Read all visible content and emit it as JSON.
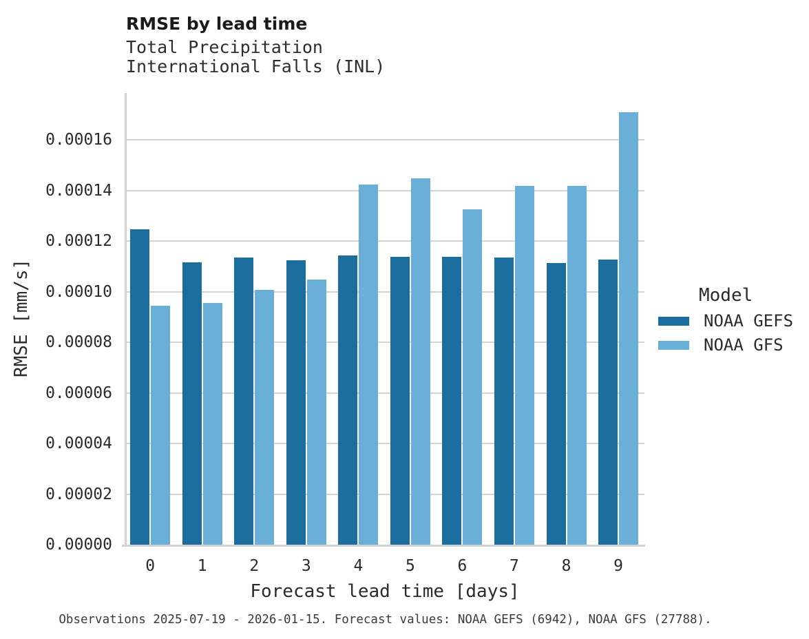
{
  "header": {
    "title": "RMSE by lead time",
    "subtitle_line1": "Total Precipitation",
    "subtitle_line2": "International Falls (INL)"
  },
  "chart_data": {
    "type": "bar",
    "title": "RMSE by lead time",
    "subtitle": [
      "Total Precipitation",
      "International Falls (INL)"
    ],
    "xlabel": "Forecast lead time [days]",
    "ylabel": "RMSE [mm/s]",
    "categories": [
      "0",
      "1",
      "2",
      "3",
      "4",
      "5",
      "6",
      "7",
      "8",
      "9"
    ],
    "series": [
      {
        "name": "NOAA GEFS",
        "color": "#1b6d9e",
        "values": [
          0.0001245,
          0.0001117,
          0.0001136,
          0.0001124,
          0.0001144,
          0.0001138,
          0.0001138,
          0.0001136,
          0.0001114,
          0.0001126
        ]
      },
      {
        "name": "NOAA GFS",
        "color": "#69afd7",
        "values": [
          9.43e-05,
          9.56e-05,
          0.0001006,
          0.0001047,
          0.0001424,
          0.0001449,
          0.0001324,
          0.0001419,
          0.0001419,
          0.000171
        ]
      }
    ],
    "ylim": [
      0,
      0.000178
    ],
    "yticks": [
      0.0,
      2e-05,
      4e-05,
      6e-05,
      8e-05,
      0.0001,
      0.00012,
      0.00014,
      0.00016
    ],
    "ytick_labels": [
      "0.00000",
      "0.00002",
      "0.00004",
      "0.00006",
      "0.00008",
      "0.00010",
      "0.00012",
      "0.00014",
      "0.00016"
    ],
    "grid": "horizontal",
    "legend_title": "Model",
    "legend_position": "right"
  },
  "legend": {
    "title": "Model",
    "items": [
      {
        "label": "NOAA GEFS",
        "color": "#1b6d9e"
      },
      {
        "label": "NOAA GFS",
        "color": "#69afd7"
      }
    ]
  },
  "caption": "Observations 2025-07-19 - 2026-01-15. Forecast values: NOAA GEFS (6942), NOAA GFS (27788)."
}
